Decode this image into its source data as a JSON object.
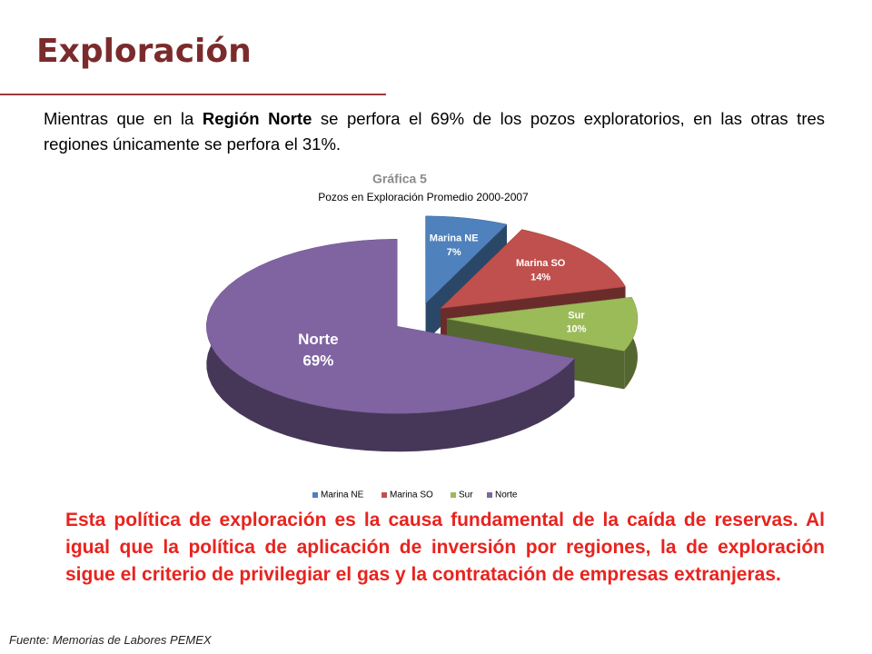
{
  "header": {
    "title": "Exploración"
  },
  "intro": [
    "Mientras que en la ",
    "Región Norte",
    " se perfora el 69% de los pozos exploratorios, en las otras tres regiones únicamente se perfora el 31%."
  ],
  "chart_data": {
    "type": "pie",
    "title": "Gráfica 5",
    "subtitle": "Pozos en Exploración Promedio 2000-2007",
    "categories": [
      "Marina NE",
      "Marina SO",
      "Sur",
      "Norte"
    ],
    "values": [
      7,
      14,
      10,
      69
    ],
    "value_labels": [
      "7%",
      "14%",
      "10%",
      "69%"
    ],
    "colors": [
      "#4f81bd",
      "#c0504d",
      "#9bbb59",
      "#8064a2"
    ],
    "legend": "bottom"
  },
  "conclusion": "Esta política de exploración es la causa fundamental de la caída de reservas. Al igual que la política de aplicación de inversión por regiones, la de exploración sigue el criterio de privilegiar el gas y la contratación de empresas extranjeras.",
  "source": "Fuente: Memorias de Labores PEMEX"
}
